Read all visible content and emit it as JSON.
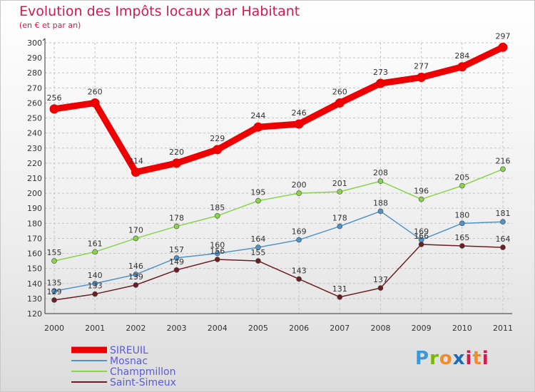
{
  "chart_data": {
    "type": "line",
    "title": "Evolution des Impôts locaux par Habitant",
    "subtitle": "(en € et par an)",
    "categories": [
      "2000",
      "2001",
      "2002",
      "2003",
      "2004",
      "2005",
      "2006",
      "2007",
      "2008",
      "2009",
      "2010",
      "2011"
    ],
    "ylim": [
      120,
      300
    ],
    "yticks": [
      120,
      130,
      140,
      150,
      160,
      170,
      180,
      190,
      200,
      210,
      220,
      230,
      240,
      250,
      260,
      270,
      280,
      290,
      300
    ],
    "grid": true,
    "series": [
      {
        "name": "SIREUIL",
        "color": "#ee0000",
        "values": [
          256,
          260,
          214,
          220,
          229,
          244,
          246,
          260,
          273,
          277,
          284,
          297
        ]
      },
      {
        "name": "Mosnac",
        "color": "#4f93c9",
        "values": [
          135,
          140,
          146,
          157,
          160,
          164,
          169,
          178,
          188,
          169,
          180,
          181
        ]
      },
      {
        "name": "Champmillon",
        "color": "#88d44a",
        "values": [
          155,
          161,
          170,
          178,
          185,
          195,
          200,
          201,
          208,
          196,
          205,
          216
        ]
      },
      {
        "name": "Saint-Simeux",
        "color": "#6b1f24",
        "values": [
          129,
          133,
          139,
          149,
          156,
          155,
          143,
          131,
          137,
          166,
          165,
          164
        ]
      }
    ]
  },
  "logo": {
    "p1": "P",
    "p2": "r",
    "p3": "o",
    "p4": "x",
    "p5": "i",
    "p6": "t",
    "p7": "i"
  }
}
